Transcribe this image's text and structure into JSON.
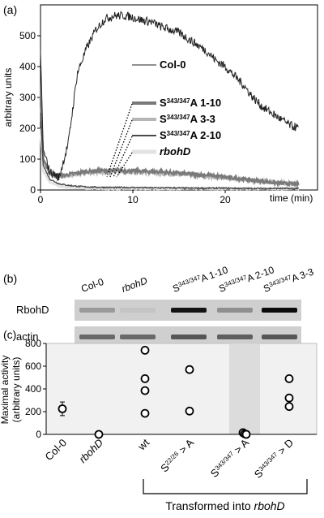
{
  "panels": {
    "a": "(a)",
    "b": "(b)",
    "c": "(c)"
  },
  "panel_a": {
    "chart_data": {
      "type": "line",
      "ylabel": "arbitrary units",
      "xlabel": "time (min)",
      "xlim": [
        0,
        30
      ],
      "ylim": [
        0,
        600
      ],
      "xticks": [
        "0",
        "10",
        "20"
      ],
      "yticks": [
        "0",
        "100",
        "200",
        "300",
        "400",
        "500"
      ],
      "series": [
        {
          "name": "Col-0",
          "color": "#222222",
          "x": [
            0,
            0.3,
            1,
            2,
            3,
            4,
            5,
            6,
            7,
            8,
            9,
            10,
            11,
            12,
            13,
            14,
            15,
            16,
            17,
            18,
            19,
            20,
            21,
            22,
            23,
            24,
            25,
            26,
            27,
            28
          ],
          "y": [
            450,
            130,
            60,
            40,
            150,
            380,
            460,
            520,
            555,
            565,
            565,
            560,
            550,
            545,
            530,
            520,
            510,
            490,
            470,
            450,
            420,
            400,
            370,
            340,
            300,
            270,
            250,
            230,
            210,
            200
          ]
        },
        {
          "name": "S343/347A 1-10",
          "color": "#7a7a7a",
          "x": [
            0,
            0.3,
            1,
            2,
            3,
            4,
            5,
            6,
            8,
            10,
            12,
            14,
            16,
            18,
            20,
            22,
            24,
            26,
            28
          ],
          "y": [
            300,
            100,
            55,
            45,
            50,
            55,
            60,
            62,
            63,
            62,
            60,
            57,
            52,
            48,
            42,
            35,
            28,
            22,
            18
          ]
        },
        {
          "name": "S343/347A 3-3",
          "color": "#b5b5b5",
          "x": [
            0,
            0.3,
            1,
            2,
            3,
            4,
            5,
            6,
            8,
            10,
            12,
            14,
            16,
            18,
            20,
            22,
            24,
            26,
            28
          ],
          "y": [
            280,
            95,
            50,
            42,
            48,
            52,
            56,
            58,
            60,
            58,
            56,
            52,
            48,
            44,
            40,
            34,
            28,
            24,
            20
          ]
        },
        {
          "name": "S343/347A 2-10",
          "color": "#4a4a4a",
          "x": [
            0,
            0.3,
            1,
            2,
            3,
            4,
            5,
            6,
            8,
            10,
            12,
            14,
            16,
            18,
            20,
            22,
            24,
            26,
            28
          ],
          "y": [
            250,
            80,
            35,
            20,
            15,
            12,
            10,
            9,
            8,
            8,
            7,
            7,
            6,
            6,
            6,
            5,
            5,
            5,
            5
          ]
        },
        {
          "name": "rbohD",
          "color": "#e2e2e2",
          "x": [
            0,
            0.3,
            1,
            2,
            3,
            4,
            5,
            6,
            8,
            10,
            12,
            14,
            16,
            18,
            20,
            22,
            24,
            26,
            28
          ],
          "y": [
            200,
            60,
            25,
            12,
            8,
            6,
            5,
            5,
            4,
            4,
            4,
            4,
            4,
            4,
            4,
            4,
            4,
            4,
            4
          ]
        }
      ],
      "legend": [
        {
          "label": "Col-0",
          "sup": "",
          "suffix": ""
        },
        {
          "label": "S",
          "sup": "343/347",
          "suffix": "A  1-10"
        },
        {
          "label": "S",
          "sup": "343/347",
          "suffix": "A  3-3"
        },
        {
          "label": "S",
          "sup": "343/347",
          "suffix": "A  2-10"
        },
        {
          "label": "rbohD",
          "sup": "",
          "suffix": ""
        }
      ]
    }
  },
  "panel_b": {
    "lanes": [
      {
        "label": "Col-0",
        "sup": "",
        "suffix": ""
      },
      {
        "label": "rbohD",
        "sup": "",
        "suffix": ""
      },
      {
        "label": "S",
        "sup": "343/347",
        "suffix": "A  1-10"
      },
      {
        "label": "S",
        "sup": "343/347",
        "suffix": "A  2-10"
      },
      {
        "label": "S",
        "sup": "343/347",
        "suffix": "A  3-3"
      }
    ],
    "rows": [
      {
        "label": "RbohD",
        "intensity": [
          0.25,
          0.02,
          0.95,
          0.3,
          1.0
        ]
      },
      {
        "label": "actin",
        "intensity": [
          0.5,
          0.5,
          0.6,
          0.55,
          0.6
        ]
      }
    ]
  },
  "panel_c": {
    "chart_data": {
      "type": "scatter",
      "ylabel": "Maximal activity",
      "ylabel2": "(arbitrary units)",
      "ylim": [
        0,
        800
      ],
      "yticks": [
        "0",
        "200",
        "400",
        "600",
        "800"
      ],
      "categories": [
        {
          "label": "Col-0",
          "sup": "",
          "suffix": ""
        },
        {
          "label": "rbohD",
          "sup": "",
          "suffix": ""
        },
        {
          "label": "wt",
          "sup": "",
          "suffix": ""
        },
        {
          "label": "S",
          "sup": "22/26",
          "suffix": " > A"
        },
        {
          "label": "S",
          "sup": "343/347",
          "suffix": " > A"
        },
        {
          "label": "S",
          "sup": "343/347",
          "suffix": " > D"
        }
      ],
      "points": [
        {
          "cat": 0,
          "y": 225,
          "err": 60
        },
        {
          "cat": 1,
          "y": 0
        },
        {
          "cat": 2,
          "y": 740
        },
        {
          "cat": 2,
          "y": 490
        },
        {
          "cat": 2,
          "y": 385
        },
        {
          "cat": 2,
          "y": 185
        },
        {
          "cat": 3,
          "y": 570
        },
        {
          "cat": 3,
          "y": 205
        },
        {
          "cat": 4,
          "y": 15
        },
        {
          "cat": 4,
          "y": 5
        },
        {
          "cat": 4,
          "y": 0
        },
        {
          "cat": 5,
          "y": 490
        },
        {
          "cat": 5,
          "y": 320
        },
        {
          "cat": 5,
          "y": 245
        }
      ],
      "highlight_category": 4,
      "bracket_label": "Transformed into rbohD"
    }
  }
}
